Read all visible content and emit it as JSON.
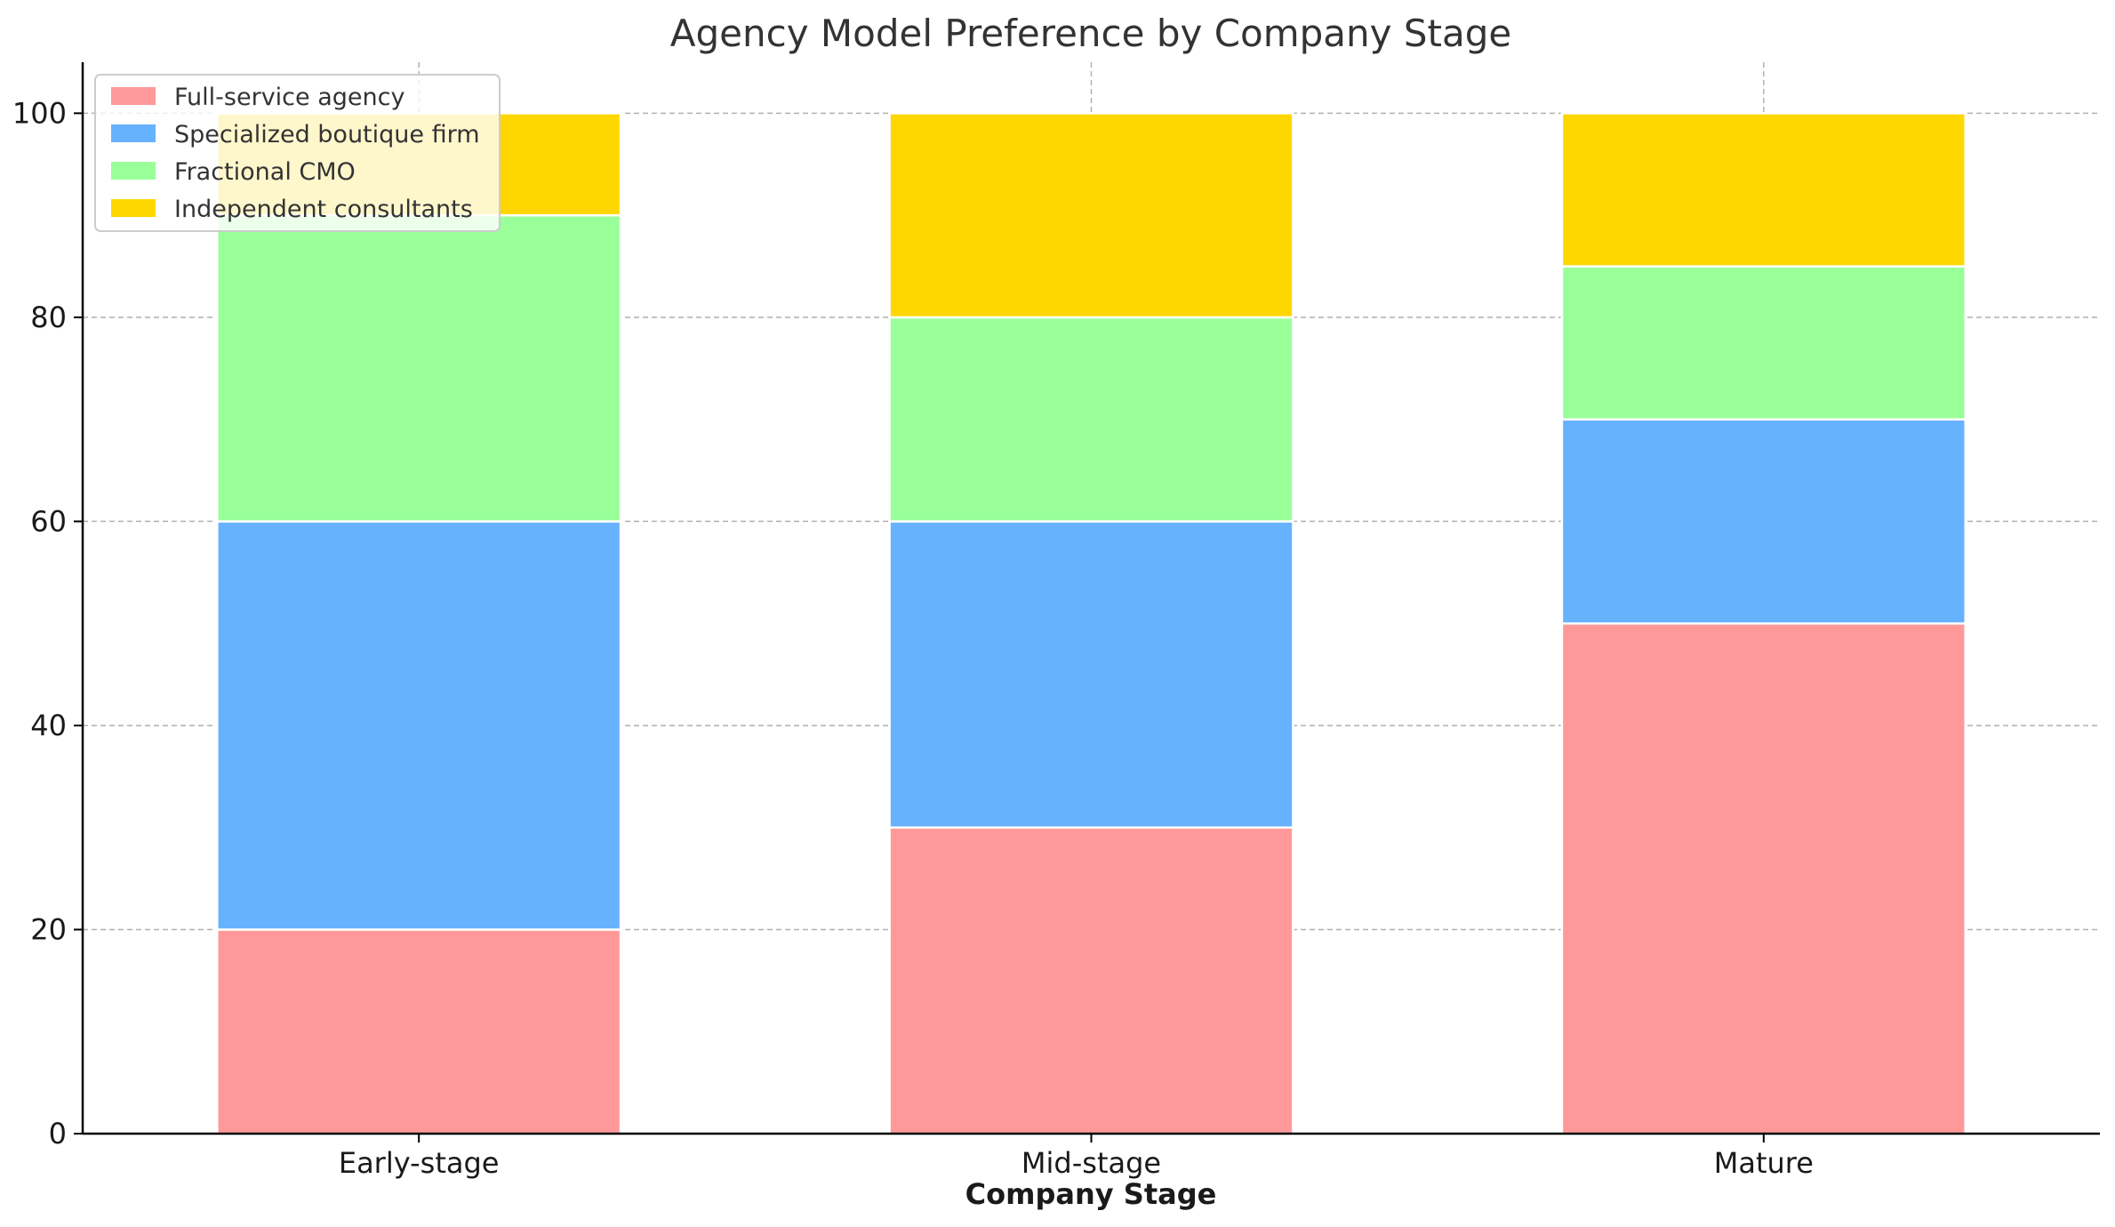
{
  "chart_data": {
    "type": "bar",
    "stacked": true,
    "title": "Agency Model Preference by Company Stage",
    "xlabel": "Company Stage",
    "ylabel": "",
    "categories": [
      "Early-stage",
      "Mid-stage",
      "Mature"
    ],
    "series": [
      {
        "name": "Full-service agency",
        "values": [
          20,
          30,
          50
        ],
        "color": "#ff9999"
      },
      {
        "name": "Specialized boutique firm",
        "values": [
          40,
          30,
          20
        ],
        "color": "#66b2ff"
      },
      {
        "name": "Fractional CMO",
        "values": [
          30,
          20,
          15
        ],
        "color": "#99ff99"
      },
      {
        "name": "Independent consultants",
        "values": [
          10,
          20,
          15
        ],
        "color": "#ffd700"
      }
    ],
    "ylim": [
      0,
      105
    ],
    "yticks": [
      0,
      20,
      40,
      60,
      80,
      100
    ],
    "grid": true,
    "legend_position": "top-left"
  }
}
